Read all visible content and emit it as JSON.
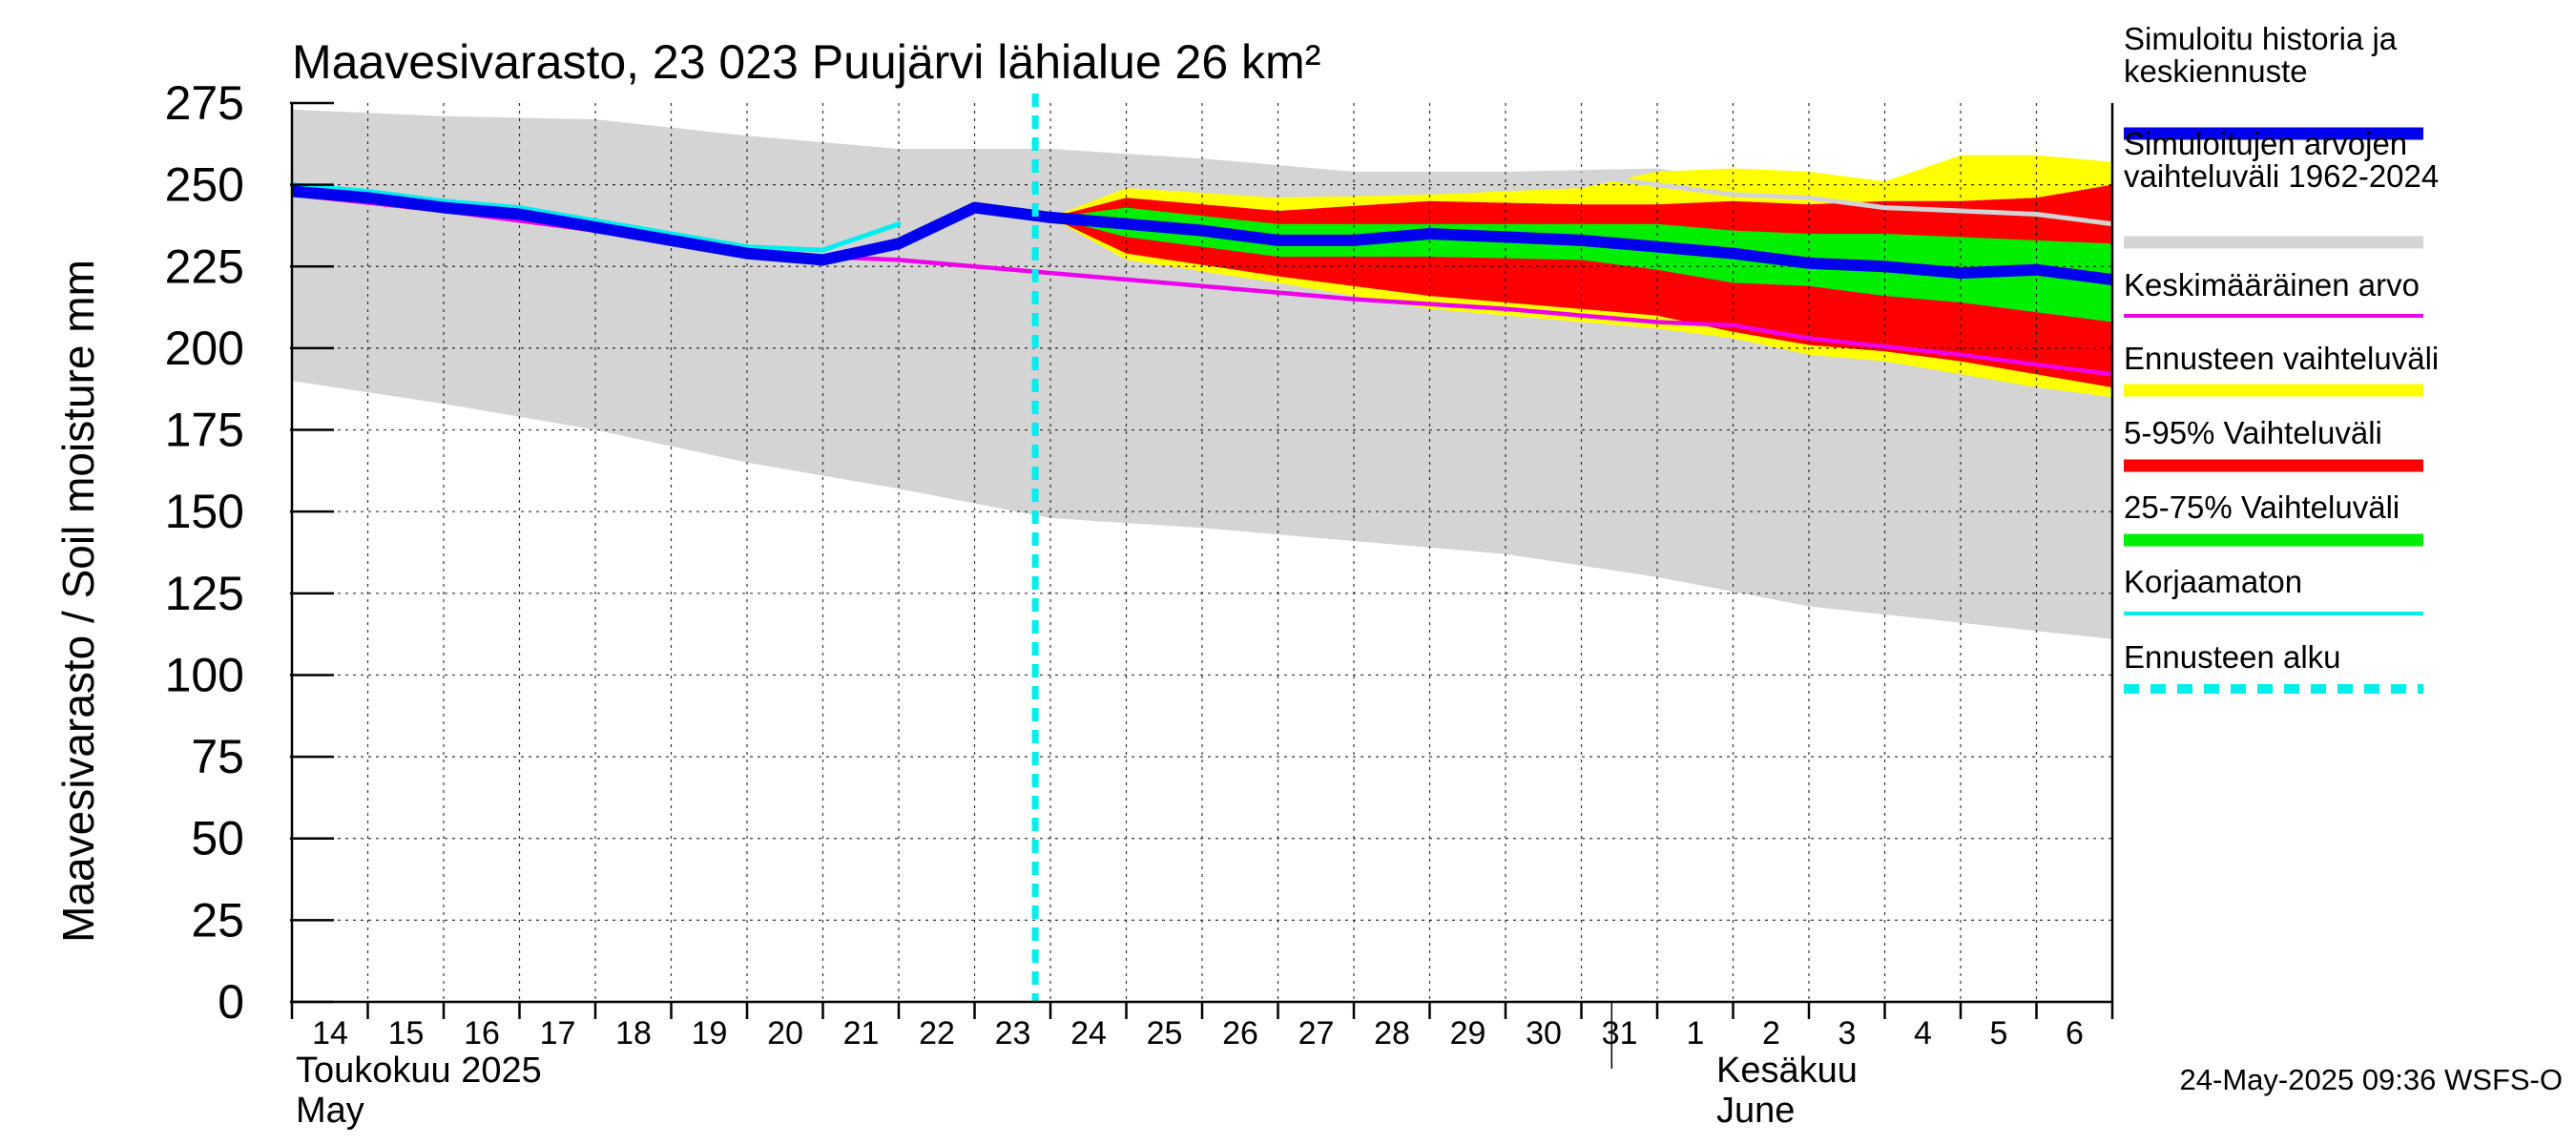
{
  "chart_data": {
    "type": "area",
    "title": "Maavesivarasto, 23 023 Puujärvi lähialue 26 km²",
    "ylabel": "Maavesivarasto / Soil moisture   mm",
    "xlabel": "",
    "ylim": [
      0,
      275
    ],
    "yticks": [
      0,
      25,
      50,
      75,
      100,
      125,
      150,
      175,
      200,
      225,
      250,
      275
    ],
    "xlim": [
      "2025-05-14",
      "2025-06-07"
    ],
    "grid": true,
    "legend_position": "right",
    "x_tick_labels": [
      "14",
      "15",
      "16",
      "17",
      "18",
      "19",
      "20",
      "21",
      "22",
      "23",
      "24",
      "25",
      "26",
      "27",
      "28",
      "29",
      "30",
      "31",
      "1",
      "2",
      "3",
      "4",
      "5",
      "6"
    ],
    "month_labels": [
      {
        "date": "2025-05-14",
        "lines": [
          "Toukokuu  2025",
          "May"
        ]
      },
      {
        "date": "2025-06-01",
        "lines": [
          "Kesäkuu",
          "June"
        ]
      }
    ],
    "forecast_start": "2025-05-24",
    "footer": "24-May-2025 09:36 WSFS-O",
    "colors": {
      "history_range": "#d4d4d4",
      "forecast_range": "#ffff00",
      "range_5_95": "#ff0000",
      "range_25_75": "#00ee00",
      "simulated": "#0000ee",
      "mean": "#ee00ee",
      "uncorrected": "#00eeee",
      "forecast_start": "#00eeee",
      "grid": "#000000"
    },
    "legend": [
      {
        "key": "simulated",
        "lines": [
          "Simuloitu historia ja",
          "keskiennuste"
        ],
        "style": "thick"
      },
      {
        "key": "history_range",
        "lines": [
          "Simuloitujen arvojen",
          "vaihteluväli 1962-2024"
        ],
        "style": "thick"
      },
      {
        "key": "mean",
        "lines": [
          "Keskimääräinen arvo"
        ],
        "style": "thin"
      },
      {
        "key": "forecast_range",
        "lines": [
          "Ennusteen vaihteluväli"
        ],
        "style": "thick"
      },
      {
        "key": "range_5_95",
        "lines": [
          "5-95% Vaihteluväli"
        ],
        "style": "thick"
      },
      {
        "key": "range_25_75",
        "lines": [
          "25-75% Vaihteluväli"
        ],
        "style": "thick"
      },
      {
        "key": "uncorrected",
        "lines": [
          "Korjaamaton"
        ],
        "style": "thin"
      },
      {
        "key": "forecast_start",
        "lines": [
          "Ennusteen alku"
        ],
        "style": "dashed"
      }
    ],
    "history_range": {
      "x": [
        "2025-05-14",
        "2025-05-16",
        "2025-05-18",
        "2025-05-20",
        "2025-05-22",
        "2025-05-24",
        "2025-05-26",
        "2025-05-28",
        "2025-05-30",
        "2025-06-01",
        "2025-06-03",
        "2025-06-05",
        "2025-06-07"
      ],
      "upper": [
        273,
        271,
        270,
        265,
        261,
        261,
        258,
        254,
        254,
        255,
        248,
        247,
        246
      ],
      "lower": [
        190,
        183,
        175,
        165,
        157,
        148,
        145,
        141,
        137,
        130,
        121,
        116,
        111
      ]
    },
    "forecast_range": {
      "x": [
        "2025-05-24",
        "2025-05-25",
        "2025-05-27",
        "2025-05-29",
        "2025-05-31",
        "2025-06-01",
        "2025-06-02",
        "2025-06-03",
        "2025-06-04",
        "2025-06-05",
        "2025-06-06",
        "2025-06-07"
      ],
      "upper": [
        240,
        249,
        246,
        247,
        249,
        254,
        255,
        254,
        251,
        259,
        259,
        257
      ],
      "lower": [
        240,
        227,
        220,
        212,
        208,
        206,
        203,
        198,
        196,
        192,
        188,
        185
      ]
    },
    "range_5_95": {
      "x": [
        "2025-05-24",
        "2025-05-25",
        "2025-05-27",
        "2025-05-29",
        "2025-05-31",
        "2025-06-01",
        "2025-06-02",
        "2025-06-03",
        "2025-06-04",
        "2025-06-05",
        "2025-06-06",
        "2025-06-07"
      ],
      "upper": [
        240,
        246,
        242,
        245,
        244,
        244,
        245,
        244,
        245,
        245,
        246,
        250
      ],
      "lower": [
        240,
        229,
        222,
        216,
        212,
        210,
        205,
        201,
        199,
        196,
        192,
        188
      ]
    },
    "range_25_75": {
      "x": [
        "2025-05-24",
        "2025-05-25",
        "2025-05-27",
        "2025-05-29",
        "2025-05-31",
        "2025-06-01",
        "2025-06-02",
        "2025-06-03",
        "2025-06-04",
        "2025-06-05",
        "2025-06-06",
        "2025-06-07"
      ],
      "upper": [
        240,
        243,
        238,
        238,
        238,
        238,
        236,
        235,
        235,
        234,
        233,
        232
      ],
      "lower": [
        240,
        234,
        228,
        228,
        227,
        224,
        220,
        219,
        216,
        214,
        211,
        208
      ]
    },
    "series": [
      {
        "key": "simulated",
        "name": "Simuloitu historia ja keskiennuste",
        "x": [
          "2025-05-14",
          "2025-05-15",
          "2025-05-16",
          "2025-05-17",
          "2025-05-18",
          "2025-05-19",
          "2025-05-20",
          "2025-05-21",
          "2025-05-22",
          "2025-05-23",
          "2025-05-24",
          "2025-05-25",
          "2025-05-26",
          "2025-05-27",
          "2025-05-28",
          "2025-05-29",
          "2025-05-30",
          "2025-05-31",
          "2025-06-01",
          "2025-06-02",
          "2025-06-03",
          "2025-06-04",
          "2025-06-05",
          "2025-06-06",
          "2025-06-07"
        ],
        "y": [
          248,
          246,
          243,
          241,
          237,
          233,
          229,
          227,
          232,
          243,
          240,
          238,
          236,
          233,
          233,
          235,
          234,
          233,
          231,
          229,
          226,
          225,
          223,
          224,
          221
        ]
      },
      {
        "key": "mean",
        "name": "Keskimääräinen arvo",
        "x": [
          "2025-05-14",
          "2025-05-16",
          "2025-05-18",
          "2025-05-20",
          "2025-05-22",
          "2025-05-24",
          "2025-05-26",
          "2025-05-28",
          "2025-05-30",
          "2025-06-01",
          "2025-06-02",
          "2025-06-03",
          "2025-06-05",
          "2025-06-07"
        ],
        "y": [
          247,
          242,
          236,
          229,
          227,
          223,
          219,
          215,
          212,
          208,
          207,
          203,
          198,
          192
        ]
      },
      {
        "key": "uncorrected",
        "name": "Korjaamaton",
        "x": [
          "2025-05-14",
          "2025-05-15",
          "2025-05-16",
          "2025-05-17",
          "2025-05-18",
          "2025-05-19",
          "2025-05-20",
          "2025-05-21",
          "2025-05-22"
        ],
        "y": [
          250,
          248,
          245,
          243,
          239,
          235,
          231,
          230,
          238
        ]
      },
      {
        "key": "history_mean_grey",
        "name": "",
        "x": [
          "2025-05-31",
          "2025-06-01",
          "2025-06-02",
          "2025-06-03",
          "2025-06-04",
          "2025-06-05",
          "2025-06-06",
          "2025-06-07"
        ],
        "y": [
          253,
          250,
          247,
          246,
          243,
          242,
          241,
          238
        ]
      }
    ]
  }
}
